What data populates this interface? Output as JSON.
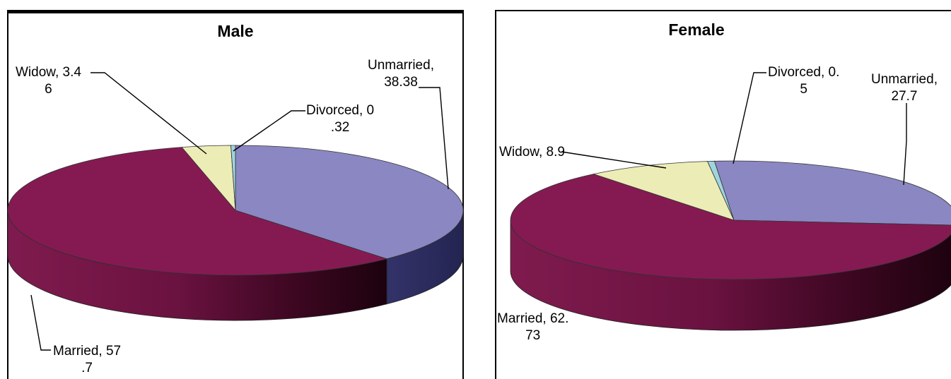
{
  "charts": [
    {
      "title": "Male",
      "labels": [
        {
          "line1": "Unmarried,",
          "line2": "38.38"
        },
        {
          "line1": "Married, 57",
          "line2": ".7"
        },
        {
          "line1": "Widow, 3.4",
          "line2": "6"
        },
        {
          "line1": "Divorced, 0",
          "line2": ".32"
        }
      ]
    },
    {
      "title": "Female",
      "labels": [
        {
          "line1": "Unmarried,",
          "line2": "27.7"
        },
        {
          "line1": "Married, 62.",
          "line2": "73"
        },
        {
          "line1": "Widow, 8.9",
          "line2": ""
        },
        {
          "line1": "Divorced, 0.",
          "line2": "5"
        }
      ]
    }
  ],
  "chart_data": [
    {
      "type": "pie",
      "title": "Male",
      "categories": [
        "Unmarried",
        "Married",
        "Widow",
        "Divorced"
      ],
      "values": [
        38.38,
        57.7,
        3.46,
        0.32
      ],
      "colors": [
        "#8a87c2",
        "#851a52",
        "#ececb6",
        "#9fd4df"
      ],
      "side_colors": [
        "#2e2f62",
        "#851a52",
        "#b8b88a",
        "#6aa"
      ],
      "style": "3d-tilted"
    },
    {
      "type": "pie",
      "title": "Female",
      "categories": [
        "Unmarried",
        "Married",
        "Widow",
        "Divorced"
      ],
      "values": [
        27.7,
        62.73,
        8.9,
        0.5
      ],
      "colors": [
        "#8a87c2",
        "#851a52",
        "#ececb6",
        "#9fd4df"
      ],
      "side_colors": [
        "#2e2f62",
        "#851a52",
        "#b8b88a",
        "#6aa"
      ],
      "style": "3d-tilted"
    }
  ]
}
